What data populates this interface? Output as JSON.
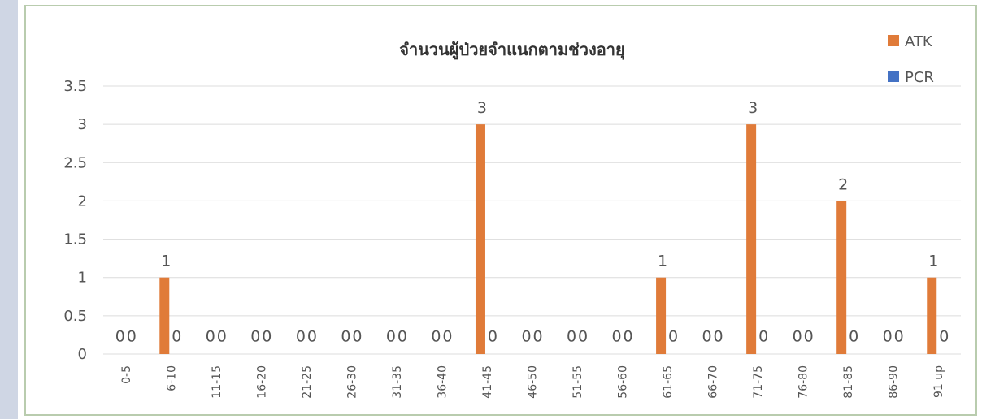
{
  "chart_data": {
    "type": "bar",
    "title": "จำนวนผู้ป่วยจำแนกตามช่วงอายุ",
    "xlabel": "",
    "ylabel": "",
    "ylim": [
      0,
      3.5
    ],
    "yticks": [
      "0",
      "0.5",
      "1",
      "1.5",
      "2",
      "2.5",
      "3",
      "3.5"
    ],
    "grid": true,
    "legend_position": "top-right",
    "categories": [
      "0-5",
      "6-10",
      "11-15",
      "16-20",
      "21-25",
      "26-30",
      "31-35",
      "36-40",
      "41-45",
      "46-50",
      "51-55",
      "56-60",
      "61-65",
      "66-70",
      "71-75",
      "76-80",
      "81-85",
      "86-90",
      "91 up"
    ],
    "series": [
      {
        "name": "ATK",
        "color": "#e07b39",
        "values": [
          0,
          1,
          0,
          0,
          0,
          0,
          0,
          0,
          3,
          0,
          0,
          0,
          1,
          0,
          3,
          0,
          2,
          0,
          1
        ]
      },
      {
        "name": "PCR",
        "color": "#4472c4",
        "values": [
          0,
          0,
          0,
          0,
          0,
          0,
          0,
          0,
          0,
          0,
          0,
          0,
          0,
          0,
          0,
          0,
          0,
          0,
          0
        ]
      }
    ]
  }
}
